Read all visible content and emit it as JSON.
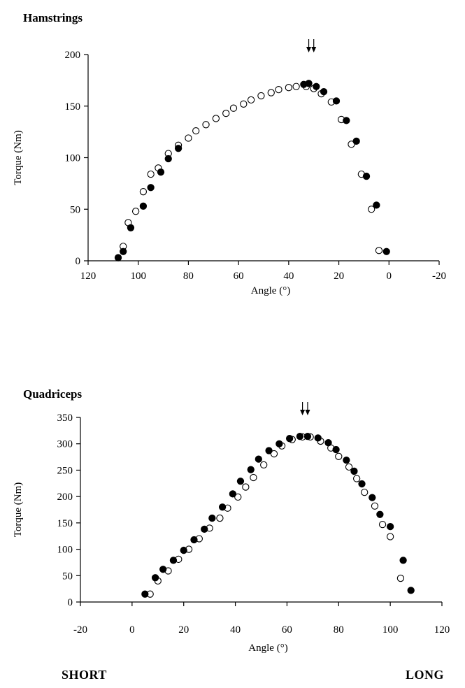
{
  "chart_data": [
    {
      "type": "scatter",
      "title": "Hamstrings",
      "xlabel": "Angle (°)",
      "ylabel": "Torque (Nm)",
      "xlim": [
        120,
        -20
      ],
      "ylim": [
        0,
        200
      ],
      "x_reversed": true,
      "xticks": [
        120,
        100,
        80,
        60,
        40,
        20,
        0,
        -20
      ],
      "yticks": [
        0,
        50,
        100,
        150,
        200
      ],
      "peak_arrows_x": [
        32,
        30
      ],
      "series": [
        {
          "marker": "filled",
          "points": [
            [
              108,
              3
            ],
            [
              106,
              9
            ],
            [
              103,
              32
            ],
            [
              98,
              53
            ],
            [
              95,
              71
            ],
            [
              91,
              86
            ],
            [
              88,
              99
            ],
            [
              84,
              109
            ],
            [
              34,
              171
            ],
            [
              32,
              172
            ],
            [
              29,
              169
            ],
            [
              26,
              164
            ],
            [
              21,
              155
            ],
            [
              17,
              136
            ],
            [
              13,
              116
            ],
            [
              9,
              82
            ],
            [
              5,
              54
            ],
            [
              1,
              9
            ]
          ]
        },
        {
          "marker": "open",
          "points": [
            [
              106,
              14
            ],
            [
              104,
              37
            ],
            [
              101,
              48
            ],
            [
              98,
              67
            ],
            [
              95,
              84
            ],
            [
              92,
              90
            ],
            [
              88,
              104
            ],
            [
              84,
              112
            ],
            [
              80,
              119
            ],
            [
              77,
              126
            ],
            [
              73,
              132
            ],
            [
              69,
              138
            ],
            [
              65,
              143
            ],
            [
              62,
              148
            ],
            [
              58,
              152
            ],
            [
              55,
              156
            ],
            [
              51,
              160
            ],
            [
              47,
              163
            ],
            [
              44,
              166
            ],
            [
              40,
              168
            ],
            [
              37,
              169
            ],
            [
              33,
              169
            ],
            [
              30,
              167
            ],
            [
              27,
              162
            ],
            [
              23,
              154
            ],
            [
              19,
              137
            ],
            [
              15,
              113
            ],
            [
              11,
              84
            ],
            [
              7,
              50
            ],
            [
              4,
              10
            ]
          ]
        }
      ]
    },
    {
      "type": "scatter",
      "title": "Quadriceps",
      "xlabel": "Angle (°)",
      "ylabel": "Torque (Nm)",
      "xlim": [
        -20,
        120
      ],
      "ylim": [
        0,
        350
      ],
      "xticks": [
        -20,
        0,
        20,
        40,
        60,
        80,
        100,
        120
      ],
      "yticks": [
        0,
        50,
        100,
        150,
        200,
        250,
        300,
        350
      ],
      "peak_arrows_x": [
        66,
        68
      ],
      "series": [
        {
          "marker": "filled",
          "points": [
            [
              5,
              15
            ],
            [
              9,
              46
            ],
            [
              12,
              62
            ],
            [
              16,
              79
            ],
            [
              20,
              98
            ],
            [
              24,
              118
            ],
            [
              28,
              138
            ],
            [
              31,
              159
            ],
            [
              35,
              180
            ],
            [
              39,
              205
            ],
            [
              42,
              229
            ],
            [
              46,
              251
            ],
            [
              49,
              271
            ],
            [
              53,
              287
            ],
            [
              57,
              300
            ],
            [
              61,
              310
            ],
            [
              65,
              314
            ],
            [
              68,
              314
            ],
            [
              72,
              311
            ],
            [
              76,
              302
            ],
            [
              79,
              289
            ],
            [
              83,
              269
            ],
            [
              86,
              248
            ],
            [
              89,
              224
            ],
            [
              93,
              198
            ],
            [
              96,
              166
            ],
            [
              100,
              143
            ],
            [
              105,
              79
            ],
            [
              108,
              22
            ]
          ]
        },
        {
          "marker": "open",
          "points": [
            [
              7,
              15
            ],
            [
              10,
              40
            ],
            [
              14,
              59
            ],
            [
              18,
              81
            ],
            [
              22,
              100
            ],
            [
              26,
              120
            ],
            [
              30,
              140
            ],
            [
              34,
              159
            ],
            [
              37,
              178
            ],
            [
              41,
              199
            ],
            [
              44,
              218
            ],
            [
              47,
              236
            ],
            [
              51,
              260
            ],
            [
              55,
              281
            ],
            [
              58,
              296
            ],
            [
              62,
              308
            ],
            [
              66,
              313
            ],
            [
              69,
              313
            ],
            [
              73,
              305
            ],
            [
              77,
              292
            ],
            [
              80,
              276
            ],
            [
              84,
              256
            ],
            [
              87,
              234
            ],
            [
              90,
              208
            ],
            [
              94,
              182
            ],
            [
              97,
              147
            ],
            [
              100,
              124
            ],
            [
              104,
              45
            ]
          ]
        }
      ]
    }
  ],
  "footer": {
    "left": "SHORT",
    "right": "LONG"
  },
  "colors": {
    "ink": "#000000",
    "background": "#ffffff"
  }
}
